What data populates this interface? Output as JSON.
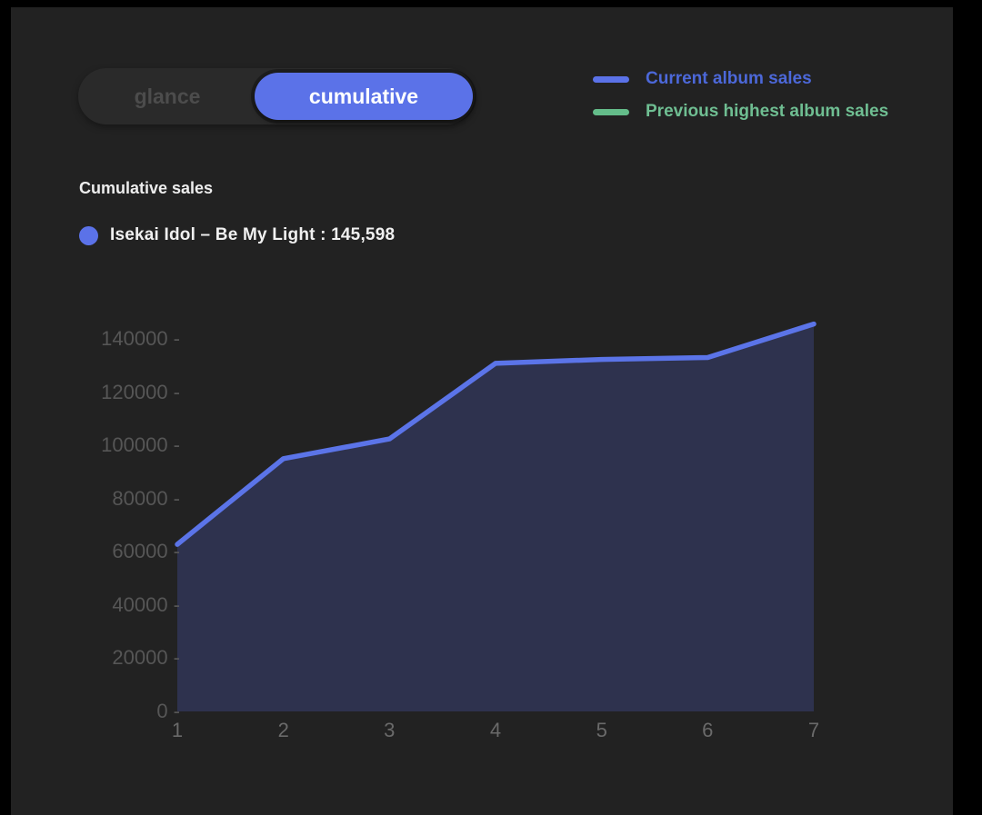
{
  "toggle": {
    "options": [
      {
        "label": "glance",
        "active": false
      },
      {
        "label": "cumulative",
        "active": true
      }
    ]
  },
  "legend": {
    "items": [
      {
        "label": "Current album sales",
        "swatch_color": "#5b72e8",
        "text_color": "#4c68d9"
      },
      {
        "label": "Previous highest album sales",
        "swatch_color": "#64bd8a",
        "text_color": "#6fbe92"
      }
    ]
  },
  "section_title": "Cumulative sales",
  "album_summary": {
    "album_name": "Isekai Idol – Be My Light",
    "total_sales": "145,598",
    "label": "Isekai Idol – Be My Light : 145,598",
    "dot_color": "#5b72e8"
  },
  "chart_data": {
    "type": "area",
    "title": "Cumulative sales",
    "x": [
      1,
      2,
      3,
      4,
      5,
      6,
      7
    ],
    "series": [
      {
        "name": "Current album sales",
        "values": [
          62800,
          95000,
          102400,
          130800,
          132300,
          133000,
          145598
        ],
        "line_color": "#5b74e8",
        "fill_color": "#2e324e"
      }
    ],
    "xlabel": "",
    "ylabel": "",
    "xlim": [
      1,
      7
    ],
    "ylim": [
      0,
      140000
    ],
    "y_ticks": [
      0,
      20000,
      40000,
      60000,
      80000,
      100000,
      120000,
      140000
    ],
    "x_ticks": [
      1,
      2,
      3,
      4,
      5,
      6,
      7
    ],
    "grid": false,
    "legend_position": "top-right"
  },
  "colors": {
    "outer_background": "#000000",
    "panel_background": "#222222",
    "toggle_background": "#2a2a2a",
    "inactive_text": "#4c4c4c",
    "accent_blue": "#5b72e8",
    "accent_green": "#64bd8a",
    "y_axis_text": "#565656",
    "x_axis_text": "#6a6a6a"
  }
}
